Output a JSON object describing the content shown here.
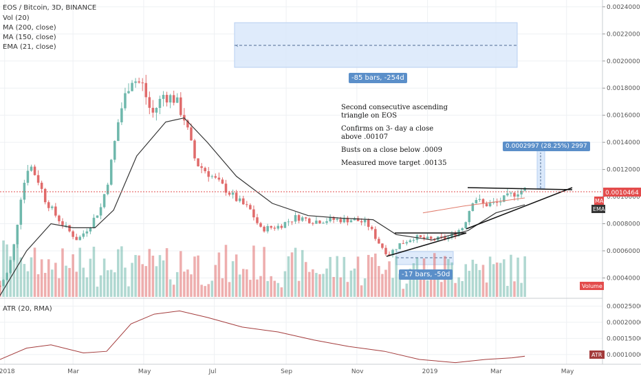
{
  "header": {
    "symbol_line": "EOS / Bitcoin, 3D, BINANCE",
    "indicators": [
      "Vol (20)",
      "MA (200, close)",
      "MA (150, close)",
      "EMA (21, close)"
    ]
  },
  "annotations": {
    "range_top_label": "-85 bars, -254d",
    "range_bottom_label": "-17 bars, -50d",
    "projection_label": "0.0002997 (28.25%) 2997",
    "note_lines": [
      "Second consecutive ascending",
      "triangle on EOS",
      "",
      "Confirms on 3- day a close",
      "above .00107",
      "",
      "Busts on a close below .0009",
      "",
      "Measured move target .00135"
    ]
  },
  "price_axis": {
    "ticks": [
      "0.0024000",
      "0.0022000",
      "0.0020000",
      "0.0018000",
      "0.0016000",
      "0.0014000",
      "0.0012000",
      "0.0010000",
      "0.0008000",
      "0.0006000",
      "0.0004000"
    ],
    "current_price_tag": "0.0010464",
    "ma_tag": "MA",
    "ema_tag": "EMA",
    "volume_tag": "Volume"
  },
  "atr_panel": {
    "title": "ATR (20, RMA)",
    "ticks": [
      "0.00025000",
      "0.00020000",
      "0.00015000",
      "0.00010000"
    ],
    "tag": "ATR"
  },
  "time_axis": {
    "labels": [
      "2018",
      "Mar",
      "May",
      "Jul",
      "Sep",
      "Nov",
      "2019",
      "Mar",
      "May"
    ]
  },
  "colors": {
    "up": "#6fb8ac",
    "down": "#e06b6b",
    "ma_line": "#333333",
    "ma_red": "#e07a6a",
    "atr_line": "#a33b3b",
    "range_fill": "#dbe9fb",
    "pill_blue": "#5b8fc9",
    "price_tag": "#e34c4c",
    "price_line": "#e34c4c"
  },
  "chart_data": {
    "type": "candlestick",
    "title": "EOS / Bitcoin, 3D, BINANCE",
    "y_range": [
      0.00025,
      0.00245
    ],
    "x_range": [
      "2017-12-28",
      "2019-06-01"
    ],
    "price_anchor_path": [
      [
        "2017-12-28",
        0.00034
      ],
      [
        "2018-01-04",
        0.00045
      ],
      [
        "2018-01-10",
        0.00068
      ],
      [
        "2018-01-15",
        0.001
      ],
      [
        "2018-01-22",
        0.00125
      ],
      [
        "2018-01-30",
        0.00112
      ],
      [
        "2018-02-05",
        0.00098
      ],
      [
        "2018-02-15",
        0.00085
      ],
      [
        "2018-02-25",
        0.00075
      ],
      [
        "2018-03-05",
        0.00068
      ],
      [
        "2018-03-15",
        0.00078
      ],
      [
        "2018-03-25",
        0.00092
      ],
      [
        "2018-04-01",
        0.00115
      ],
      [
        "2018-04-10",
        0.0016
      ],
      [
        "2018-04-20",
        0.00188
      ],
      [
        "2018-04-30",
        0.00182
      ],
      [
        "2018-05-08",
        0.0016
      ],
      [
        "2018-05-18",
        0.00175
      ],
      [
        "2018-05-28",
        0.00172
      ],
      [
        "2018-06-05",
        0.00158
      ],
      [
        "2018-06-15",
        0.00125
      ],
      [
        "2018-06-25",
        0.00118
      ],
      [
        "2018-07-05",
        0.0011
      ],
      [
        "2018-07-20",
        0.00098
      ],
      [
        "2018-08-01",
        0.0009
      ],
      [
        "2018-08-10",
        0.00076
      ],
      [
        "2018-08-25",
        0.00078
      ],
      [
        "2018-09-10",
        0.00085
      ],
      [
        "2018-09-25",
        0.00082
      ],
      [
        "2018-10-10",
        0.00083
      ],
      [
        "2018-10-30",
        0.00083
      ],
      [
        "2018-11-10",
        0.0008
      ],
      [
        "2018-11-20",
        0.00066
      ],
      [
        "2018-11-28",
        0.00057
      ],
      [
        "2018-12-08",
        0.00065
      ],
      [
        "2018-12-20",
        0.0007
      ],
      [
        "2019-01-05",
        0.00068
      ],
      [
        "2019-01-20",
        0.0007
      ],
      [
        "2019-02-01",
        0.00078
      ],
      [
        "2019-02-10",
        0.001
      ],
      [
        "2019-02-18",
        0.00094
      ],
      [
        "2019-03-01",
        0.00095
      ],
      [
        "2019-03-10",
        0.00099
      ],
      [
        "2019-03-20",
        0.00104
      ],
      [
        "2019-03-26",
        0.00105
      ]
    ],
    "ema_anchor_path": [
      [
        "2017-12-28",
        0.00027
      ],
      [
        "2018-01-20",
        0.0006
      ],
      [
        "2018-02-10",
        0.0008
      ],
      [
        "2018-03-01",
        0.00077
      ],
      [
        "2018-03-20",
        0.00077
      ],
      [
        "2018-04-05",
        0.0009
      ],
      [
        "2018-04-25",
        0.0013
      ],
      [
        "2018-05-20",
        0.00155
      ],
      [
        "2018-06-05",
        0.00158
      ],
      [
        "2018-06-25",
        0.0014
      ],
      [
        "2018-07-20",
        0.00115
      ],
      [
        "2018-08-20",
        0.00095
      ],
      [
        "2018-09-20",
        0.00086
      ],
      [
        "2018-10-20",
        0.00084
      ],
      [
        "2018-11-15",
        0.00083
      ],
      [
        "2018-12-05",
        0.00072
      ],
      [
        "2019-01-05",
        0.00068
      ],
      [
        "2019-02-05",
        0.00075
      ],
      [
        "2019-03-01",
        0.00088
      ],
      [
        "2019-03-26",
        0.00094
      ]
    ],
    "ma_red_anchor_path": [
      [
        "2018-12-28",
        0.00088
      ],
      [
        "2019-02-01",
        0.00093
      ],
      [
        "2019-03-26",
        0.00099
      ]
    ],
    "atr_range": [
      7e-05,
      0.00027
    ],
    "atr_anchor_path": [
      [
        "2017-12-28",
        8.5e-05
      ],
      [
        "2018-01-20",
        0.00012
      ],
      [
        "2018-02-10",
        0.00013
      ],
      [
        "2018-03-10",
        0.000105
      ],
      [
        "2018-03-30",
        0.00011
      ],
      [
        "2018-04-20",
        0.000195
      ],
      [
        "2018-05-10",
        0.000225
      ],
      [
        "2018-06-01",
        0.000235
      ],
      [
        "2018-06-25",
        0.000215
      ],
      [
        "2018-07-25",
        0.000185
      ],
      [
        "2018-08-25",
        0.00017
      ],
      [
        "2018-09-25",
        0.000145
      ],
      [
        "2018-10-25",
        0.000125
      ],
      [
        "2018-11-25",
        0.00011
      ],
      [
        "2018-12-25",
        8.5e-05
      ],
      [
        "2019-01-25",
        7.5e-05
      ],
      [
        "2019-02-20",
        8.5e-05
      ],
      [
        "2019-03-15",
        9e-05
      ],
      [
        "2019-03-26",
        9.5e-05
      ]
    ]
  }
}
